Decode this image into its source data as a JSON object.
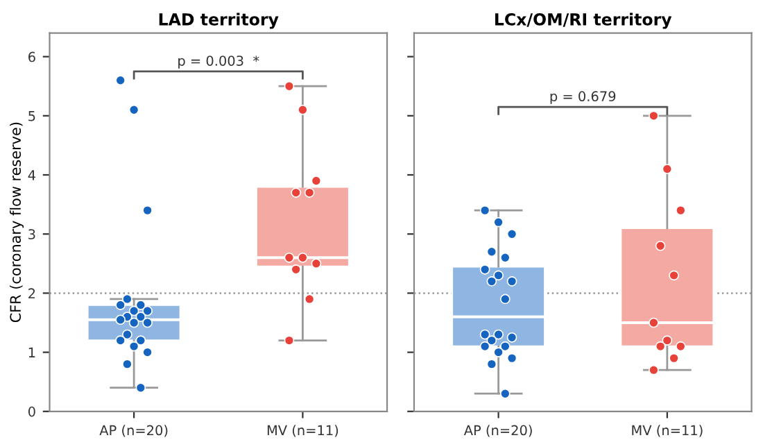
{
  "chart_data": [
    {
      "type": "box",
      "title": "LAD territory",
      "ylabel": "CFR (coronary flow reserve)",
      "categories": [
        "AP (n=20)",
        "MV (n=11)"
      ],
      "colors": [
        "#8fb6e3",
        "#f4a9a3"
      ],
      "boxes": [
        {
          "low": 0.4,
          "q1": 1.2,
          "median": 1.55,
          "q3": 1.8,
          "high": 1.9
        },
        {
          "low": 1.2,
          "q1": 2.45,
          "median": 2.6,
          "q3": 3.8,
          "high": 5.5
        }
      ],
      "series": [
        {
          "type": "scatter",
          "color": "#1565c0",
          "x": [
            "AP (n=20)",
            "AP (n=20)",
            "AP (n=20)",
            "AP (n=20)",
            "AP (n=20)",
            "AP (n=20)",
            "AP (n=20)",
            "AP (n=20)",
            "AP (n=20)",
            "AP (n=20)",
            "AP (n=20)",
            "AP (n=20)",
            "AP (n=20)",
            "AP (n=20)",
            "AP (n=20)",
            "AP (n=20)",
            "AP (n=20)",
            "AP (n=20)",
            "AP (n=20)",
            "AP (n=20)"
          ],
          "values": [
            5.6,
            5.1,
            3.4,
            1.9,
            1.8,
            1.8,
            1.7,
            1.7,
            1.6,
            1.6,
            1.55,
            1.5,
            1.5,
            1.3,
            1.2,
            1.2,
            1.1,
            1.0,
            0.8,
            0.4
          ]
        },
        {
          "type": "scatter",
          "color": "#e8413a",
          "x": [
            "MV (n=11)",
            "MV (n=11)",
            "MV (n=11)",
            "MV (n=11)",
            "MV (n=11)",
            "MV (n=11)",
            "MV (n=11)",
            "MV (n=11)",
            "MV (n=11)",
            "MV (n=11)",
            "MV (n=11)"
          ],
          "values": [
            5.5,
            5.1,
            3.9,
            3.7,
            3.7,
            2.6,
            2.6,
            2.5,
            2.4,
            1.9,
            1.2
          ]
        }
      ],
      "ylim": [
        0,
        6.4
      ],
      "yticks": [
        0,
        1,
        2,
        3,
        4,
        5,
        6
      ],
      "ref_lines": [
        {
          "axis": "y",
          "value": 2,
          "color": "#999999",
          "line_style": "dotted"
        }
      ],
      "annotations": [
        "p = 0.003  *"
      ]
    },
    {
      "type": "box",
      "title": "LCx/OM/RI territory",
      "categories": [
        "AP (n=20)",
        "MV (n=11)"
      ],
      "colors": [
        "#8fb6e3",
        "#f4a9a3"
      ],
      "boxes": [
        {
          "low": 0.3,
          "q1": 1.1,
          "median": 1.6,
          "q3": 2.45,
          "high": 3.4
        },
        {
          "low": 0.7,
          "q1": 1.1,
          "median": 1.5,
          "q3": 3.1,
          "high": 5.0
        }
      ],
      "series": [
        {
          "type": "scatter",
          "color": "#1565c0",
          "x": [
            "AP (n=20)",
            "AP (n=20)",
            "AP (n=20)",
            "AP (n=20)",
            "AP (n=20)",
            "AP (n=20)",
            "AP (n=20)",
            "AP (n=20)",
            "AP (n=20)",
            "AP (n=20)",
            "AP (n=20)",
            "AP (n=20)",
            "AP (n=20)",
            "AP (n=20)",
            "AP (n=20)",
            "AP (n=20)",
            "AP (n=20)",
            "AP (n=20)",
            "AP (n=20)",
            "AP (n=20)"
          ],
          "values": [
            3.4,
            3.2,
            3.0,
            2.7,
            2.6,
            2.4,
            2.3,
            2.2,
            2.2,
            1.9,
            1.3,
            1.3,
            1.25,
            1.2,
            1.1,
            1.1,
            1.0,
            0.9,
            0.8,
            0.3
          ]
        },
        {
          "type": "scatter",
          "color": "#e8413a",
          "x": [
            "MV (n=11)",
            "MV (n=11)",
            "MV (n=11)",
            "MV (n=11)",
            "MV (n=11)",
            "MV (n=11)",
            "MV (n=11)",
            "MV (n=11)",
            "MV (n=11)",
            "MV (n=11)",
            "MV (n=11)"
          ],
          "values": [
            5.0,
            4.1,
            3.4,
            2.8,
            2.3,
            1.5,
            1.2,
            1.1,
            1.1,
            0.9,
            0.7
          ]
        }
      ],
      "ylim": [
        0,
        6.4
      ],
      "yticks": [
        0,
        1,
        2,
        3,
        4,
        5,
        6
      ],
      "tick_labels": "x",
      "ref_lines": [
        {
          "axis": "y",
          "value": 2,
          "color": "#999999",
          "line_style": "dotted"
        }
      ],
      "annotations": [
        "p = 0.679"
      ]
    }
  ]
}
